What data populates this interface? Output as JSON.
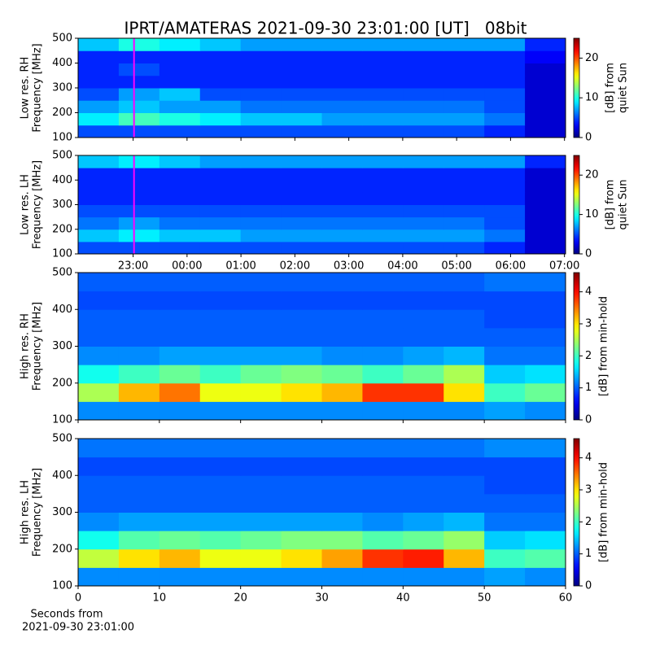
{
  "chart_data": [
    {
      "type": "heatmap",
      "title": "IPRT/AMATERAS 2021-09-30 23:01:00 [UT]   08bit",
      "ylabel": [
        "Low res. RH",
        "Frequency [MHz]"
      ],
      "colorbar_label": [
        "[dB] from",
        "quiet Sun"
      ],
      "colormap": "jet",
      "xlim": [
        21.98,
        31.02
      ],
      "xticks": [
        23,
        24,
        25,
        26,
        27,
        28,
        29,
        30,
        31
      ],
      "ylim": [
        100,
        500
      ],
      "yticks": [
        100,
        200,
        300,
        400,
        500
      ],
      "zlim": [
        0,
        25
      ],
      "zticks": [
        0,
        10,
        20
      ],
      "vline": {
        "x": 23.0167,
        "color": "#ff00ff"
      },
      "z": [
        [
          5,
          5,
          5,
          5,
          5,
          5,
          5,
          5,
          5,
          5,
          4,
          2
        ],
        [
          9,
          11,
          10,
          9,
          8,
          8,
          7,
          7,
          7,
          7,
          6,
          2
        ],
        [
          7,
          8,
          7,
          7,
          6,
          6,
          6,
          6,
          6,
          6,
          5,
          2
        ],
        [
          5,
          7,
          8,
          5,
          5,
          5,
          5,
          5,
          5,
          5,
          5,
          2
        ],
        [
          4,
          4,
          4,
          4,
          4,
          4,
          4,
          4,
          4,
          4,
          4,
          2
        ],
        [
          4,
          5,
          4,
          4,
          4,
          4,
          4,
          4,
          4,
          4,
          4,
          2
        ],
        [
          4,
          4,
          4,
          4,
          4,
          4,
          4,
          4,
          4,
          4,
          4,
          3
        ],
        [
          8,
          10,
          9,
          8,
          7,
          7,
          7,
          7,
          7,
          7,
          7,
          4
        ]
      ]
    },
    {
      "type": "heatmap",
      "ylabel": [
        "Low res. LH",
        "Frequency [MHz]"
      ],
      "colorbar_label": [
        "[dB] from",
        "quiet Sun"
      ],
      "colormap": "jet",
      "xlim": [
        21.98,
        31.02
      ],
      "xticks": [
        {
          "value": 23,
          "label": "23:00"
        },
        {
          "value": 24,
          "label": "00:00"
        },
        {
          "value": 25,
          "label": "01:00"
        },
        {
          "value": 26,
          "label": "02:00"
        },
        {
          "value": 27,
          "label": "03:00"
        },
        {
          "value": 28,
          "label": "04:00"
        },
        {
          "value": 29,
          "label": "05:00"
        },
        {
          "value": 30,
          "label": "06:00"
        },
        {
          "value": 31,
          "label": "07:00"
        }
      ],
      "ylim": [
        100,
        500
      ],
      "yticks": [
        100,
        200,
        300,
        400,
        500
      ],
      "zlim": [
        0,
        25
      ],
      "zticks": [
        0,
        10,
        20
      ],
      "vline": {
        "x": 23.0167,
        "color": "#ff00ff"
      },
      "z": [
        [
          5,
          5,
          5,
          5,
          5,
          5,
          5,
          5,
          5,
          5,
          4,
          2
        ],
        [
          8,
          9,
          8,
          8,
          7,
          7,
          7,
          7,
          7,
          7,
          6,
          2
        ],
        [
          6,
          7,
          6,
          6,
          6,
          6,
          6,
          6,
          6,
          6,
          5,
          2
        ],
        [
          5,
          5,
          5,
          5,
          5,
          5,
          5,
          5,
          5,
          5,
          5,
          2
        ],
        [
          4,
          4,
          4,
          4,
          4,
          4,
          4,
          4,
          4,
          4,
          4,
          2
        ],
        [
          4,
          4,
          4,
          4,
          4,
          4,
          4,
          4,
          4,
          4,
          4,
          2
        ],
        [
          4,
          4,
          4,
          4,
          4,
          4,
          4,
          4,
          4,
          4,
          4,
          2
        ],
        [
          8,
          9,
          8,
          7,
          7,
          7,
          7,
          7,
          7,
          7,
          7,
          4
        ]
      ]
    },
    {
      "type": "heatmap",
      "ylabel": [
        "High res. RH",
        "Frequency [MHz]"
      ],
      "colorbar_label": [
        "[dB] from min-hold"
      ],
      "colormap": "jet",
      "xlim": [
        0,
        60
      ],
      "xticks": [
        0,
        10,
        20,
        30,
        40,
        50,
        60
      ],
      "ylim": [
        100,
        500
      ],
      "yticks": [
        100,
        200,
        300,
        400,
        500
      ],
      "zlim": [
        0,
        4.6
      ],
      "zticks": [
        0,
        1,
        2,
        3,
        4
      ],
      "z": [
        [
          1.2,
          1.2,
          1.2,
          1.2,
          1.2,
          1.2,
          1.2,
          1.2,
          1.2,
          1.2,
          1.3,
          1.2
        ],
        [
          2.5,
          3.2,
          3.5,
          2.8,
          2.8,
          3,
          3.2,
          3.8,
          3.8,
          3,
          2,
          2.2
        ],
        [
          1.8,
          2,
          2.2,
          2,
          2.2,
          2.3,
          2.2,
          2,
          2.2,
          2.5,
          1.5,
          1.6
        ],
        [
          1.2,
          1.2,
          1.3,
          1.3,
          1.3,
          1.3,
          1.2,
          1.2,
          1.3,
          1.4,
          1.1,
          1.1
        ],
        [
          1,
          1,
          1,
          1,
          1,
          1,
          1,
          1,
          1,
          1,
          1,
          1
        ],
        [
          1,
          1,
          1,
          1,
          1,
          1,
          1,
          1,
          1,
          1,
          0.9,
          0.9
        ],
        [
          0.9,
          0.9,
          0.9,
          0.9,
          0.9,
          0.9,
          0.9,
          0.9,
          0.9,
          0.9,
          0.9,
          0.9
        ],
        [
          1,
          1,
          1,
          1,
          1,
          1,
          1,
          1,
          1,
          1,
          1.1,
          1.1
        ]
      ]
    },
    {
      "type": "heatmap",
      "ylabel": [
        "High res. LH",
        "Frequency [MHz]"
      ],
      "colorbar_label": [
        "[dB] from min-hold"
      ],
      "colormap": "jet",
      "xlim": [
        0,
        60
      ],
      "xticks": [
        0,
        10,
        20,
        30,
        40,
        50,
        60
      ],
      "xlabel": [
        "Seconds from",
        "2021-09-30 23:01:00"
      ],
      "ylim": [
        100,
        500
      ],
      "yticks": [
        100,
        200,
        300,
        400,
        500
      ],
      "zlim": [
        0,
        4.6
      ],
      "zticks": [
        0,
        1,
        2,
        3,
        4
      ],
      "z": [
        [
          1.2,
          1.2,
          1.2,
          1.2,
          1.2,
          1.2,
          1.2,
          1.2,
          1.2,
          1.2,
          1.3,
          1.2
        ],
        [
          2.6,
          3,
          3.2,
          2.8,
          2.8,
          3,
          3.3,
          3.8,
          3.9,
          3.2,
          2,
          2.1
        ],
        [
          1.8,
          2.1,
          2.2,
          2.1,
          2.2,
          2.3,
          2.3,
          2.1,
          2.2,
          2.4,
          1.5,
          1.6
        ],
        [
          1.2,
          1.3,
          1.3,
          1.3,
          1.3,
          1.3,
          1.3,
          1.2,
          1.3,
          1.4,
          1.1,
          1.1
        ],
        [
          1,
          1,
          1,
          1,
          1,
          1,
          1,
          1,
          1,
          1,
          1,
          1
        ],
        [
          1,
          1,
          1,
          1,
          1,
          1,
          1,
          1,
          1,
          1,
          0.9,
          0.9
        ],
        [
          0.9,
          0.9,
          0.9,
          0.9,
          0.9,
          0.9,
          0.9,
          0.9,
          0.9,
          0.9,
          0.9,
          0.9
        ],
        [
          1.1,
          1.1,
          1.1,
          1.1,
          1.1,
          1.1,
          1.1,
          1.1,
          1.1,
          1.1,
          1.2,
          1.2
        ]
      ]
    }
  ]
}
